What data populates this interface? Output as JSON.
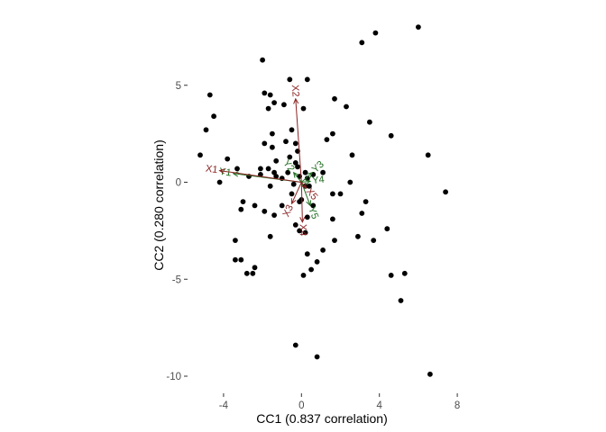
{
  "chart_data": {
    "type": "scatter",
    "title": "",
    "xlabel": "CC1 (0.837 correlation)",
    "ylabel": "CC2 (0.280 correlation)",
    "xlim": [
      -5.5,
      8.5
    ],
    "ylim": [
      -10.5,
      8.3
    ],
    "xticks": [
      -4,
      0,
      4,
      8
    ],
    "xtick_labels": [
      "-4",
      "0",
      "4",
      "8"
    ],
    "yticks": [
      -10,
      -5,
      0,
      5
    ],
    "ytick_labels": [
      "-10",
      "-5",
      "0",
      "5"
    ],
    "grid": false,
    "colors": {
      "points": "#000000",
      "x_vectors": "#8b2323",
      "y_vectors": "#1f6e1f",
      "axis_text": "#4d4d4d"
    },
    "points": [
      [
        6.0,
        8.0
      ],
      [
        3.8,
        7.7
      ],
      [
        3.1,
        7.2
      ],
      [
        -2.0,
        6.3
      ],
      [
        -0.6,
        5.3
      ],
      [
        0.3,
        5.3
      ],
      [
        -1.9,
        4.6
      ],
      [
        -1.6,
        4.5
      ],
      [
        -4.7,
        4.5
      ],
      [
        1.7,
        4.3
      ],
      [
        -1.4,
        4.1
      ],
      [
        -0.9,
        4.0
      ],
      [
        -1.7,
        3.8
      ],
      [
        0.1,
        3.8
      ],
      [
        2.3,
        3.9
      ],
      [
        -4.5,
        3.4
      ],
      [
        3.5,
        3.1
      ],
      [
        -4.9,
        2.7
      ],
      [
        -0.5,
        2.7
      ],
      [
        -1.5,
        2.5
      ],
      [
        1.6,
        2.5
      ],
      [
        4.6,
        2.4
      ],
      [
        1.3,
        2.2
      ],
      [
        -0.8,
        2.1
      ],
      [
        -1.9,
        2.0
      ],
      [
        -0.3,
        2.0
      ],
      [
        -1.5,
        1.8
      ],
      [
        -0.2,
        1.6
      ],
      [
        -5.2,
        1.4
      ],
      [
        6.5,
        1.4
      ],
      [
        2.6,
        1.4
      ],
      [
        -0.6,
        1.3
      ],
      [
        -3.8,
        1.2
      ],
      [
        -1.3,
        1.1
      ],
      [
        -0.3,
        1.0
      ],
      [
        -0.2,
        0.8
      ],
      [
        -3.3,
        0.7
      ],
      [
        -2.1,
        0.7
      ],
      [
        -1.7,
        0.7
      ],
      [
        -1.4,
        0.5
      ],
      [
        -2.1,
        0.4
      ],
      [
        -0.7,
        0.5
      ],
      [
        0.2,
        0.5
      ],
      [
        1.1,
        0.5
      ],
      [
        0.6,
        0.4
      ],
      [
        -2.7,
        0.3
      ],
      [
        -1.3,
        0.3
      ],
      [
        -1.0,
        0.2
      ],
      [
        -0.1,
        0.3
      ],
      [
        0.3,
        0.2
      ],
      [
        -4.2,
        0.0
      ],
      [
        2.5,
        0.0
      ],
      [
        -0.4,
        -0.1
      ],
      [
        0.2,
        -0.2
      ],
      [
        0.4,
        -0.2
      ],
      [
        -1.6,
        -0.2
      ],
      [
        7.4,
        -0.5
      ],
      [
        -0.5,
        -0.6
      ],
      [
        2.0,
        -0.6
      ],
      [
        1.6,
        -0.6
      ],
      [
        0.0,
        -0.9
      ],
      [
        -3.0,
        -1.0
      ],
      [
        -0.1,
        -1.0
      ],
      [
        3.3,
        -1.0
      ],
      [
        -1.0,
        -1.2
      ],
      [
        0.6,
        -1.2
      ],
      [
        -2.4,
        -1.2
      ],
      [
        -3.1,
        -1.4
      ],
      [
        -1.9,
        -1.5
      ],
      [
        3.1,
        -1.6
      ],
      [
        -1.4,
        -1.7
      ],
      [
        0.3,
        -1.8
      ],
      [
        1.6,
        -1.9
      ],
      [
        -0.3,
        -2.2
      ],
      [
        4.4,
        -2.4
      ],
      [
        -0.1,
        -2.5
      ],
      [
        0.2,
        -2.6
      ],
      [
        -1.6,
        -2.8
      ],
      [
        2.9,
        -2.8
      ],
      [
        1.7,
        -3.0
      ],
      [
        3.7,
        -3.0
      ],
      [
        -3.4,
        -3.0
      ],
      [
        1.1,
        -3.5
      ],
      [
        0.3,
        -3.7
      ],
      [
        -3.4,
        -4.0
      ],
      [
        -3.1,
        -4.0
      ],
      [
        0.8,
        -4.1
      ],
      [
        -2.4,
        -4.4
      ],
      [
        0.5,
        -4.5
      ],
      [
        -2.8,
        -4.7
      ],
      [
        -2.5,
        -4.7
      ],
      [
        0.1,
        -4.8
      ],
      [
        5.3,
        -4.7
      ],
      [
        4.6,
        -4.8
      ],
      [
        5.1,
        -6.1
      ],
      [
        -0.3,
        -8.4
      ],
      [
        0.8,
        -9.0
      ],
      [
        6.6,
        -9.9
      ]
    ],
    "x_vectors": [
      {
        "label": "X1",
        "x": -4.2,
        "y": 0.6
      },
      {
        "label": "X2",
        "x": -0.3,
        "y": 4.3
      },
      {
        "label": "X3",
        "x": -0.5,
        "y": -1.1
      },
      {
        "label": "X4",
        "x": 0.05,
        "y": -2.05
      },
      {
        "label": "X5",
        "x": 0.25,
        "y": -0.3
      }
    ],
    "y_vectors": [
      {
        "label": "Y1",
        "x": -3.5,
        "y": 0.45
      },
      {
        "label": "Y2",
        "x": -0.4,
        "y": 0.5
      },
      {
        "label": "Y3",
        "x": 0.55,
        "y": 0.5
      },
      {
        "label": "Y4",
        "x": 0.45,
        "y": 0.05
      },
      {
        "label": "Y5",
        "x": 0.45,
        "y": -1.2
      }
    ]
  }
}
